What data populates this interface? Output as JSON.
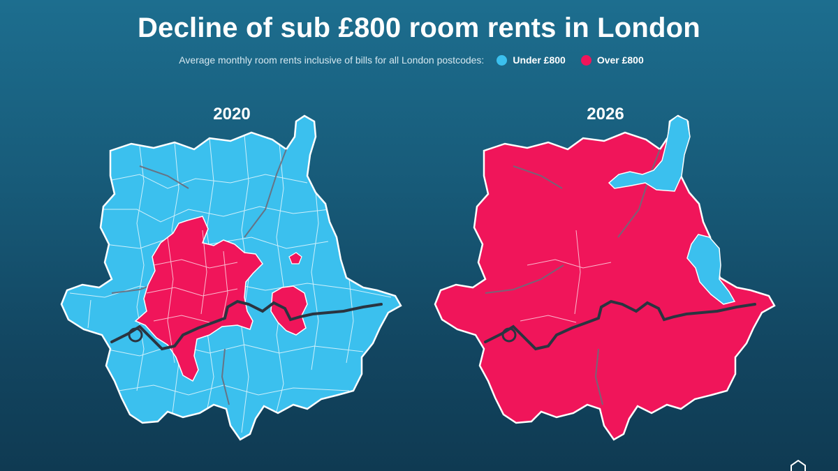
{
  "title": "Decline of sub £800 room rents in London",
  "legend": {
    "description": "Average monthly room rents inclusive of bills for all London postcodes:",
    "items": [
      {
        "label": "Under £800",
        "color": "#3bc0ee"
      },
      {
        "label": "Over £800",
        "color": "#f0155a"
      }
    ]
  },
  "maps": [
    {
      "year": "2020",
      "dominant": "under",
      "over_area": "central"
    },
    {
      "year": "2026",
      "dominant": "over",
      "under_area": "north-east"
    }
  ],
  "colors": {
    "under": "#3bc0ee",
    "over": "#f0155a",
    "border": "#ffffff",
    "district_line": "#6b6b7a",
    "river": "#2a3440"
  },
  "icons": {
    "corner_logo": "house-icon"
  }
}
